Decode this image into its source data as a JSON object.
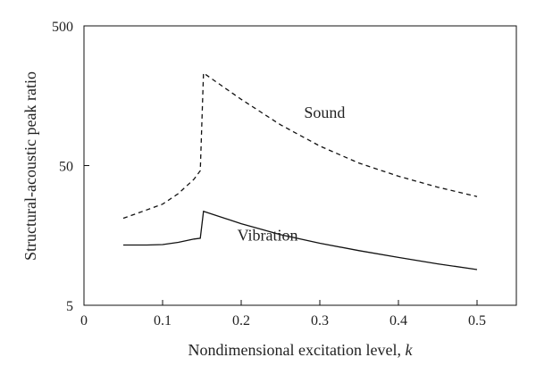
{
  "chart_data": {
    "type": "line",
    "xlabel": "Nondimensional excitation level, ",
    "xlabel_var": "k",
    "ylabel": "Structural-acoustic peak ratio",
    "xlim": [
      0,
      0.55
    ],
    "ylim": [
      5,
      500
    ],
    "yscale": "log",
    "x_ticks": [
      0,
      0.1,
      0.2,
      0.3,
      0.4,
      0.5
    ],
    "x_tick_labels": [
      "0",
      "0.1",
      "0.2",
      "0.3",
      "0.4",
      "0.5"
    ],
    "y_ticks": [
      5,
      50,
      500
    ],
    "y_tick_labels": [
      "5",
      "50",
      "500"
    ],
    "grid": false,
    "legend": "none",
    "series": [
      {
        "name": "Sound",
        "style": "dashed",
        "color": "#111111",
        "x": [
          0.05,
          0.07,
          0.1,
          0.12,
          0.14,
          0.148,
          0.152,
          0.2,
          0.25,
          0.3,
          0.35,
          0.4,
          0.45,
          0.5
        ],
        "y": [
          21,
          23,
          26.5,
          31.5,
          40,
          46,
          230,
          149,
          98,
          69,
          52,
          42,
          35,
          30
        ]
      },
      {
        "name": "Vibration",
        "style": "solid",
        "color": "#111111",
        "x": [
          0.05,
          0.08,
          0.1,
          0.12,
          0.14,
          0.148,
          0.152,
          0.2,
          0.25,
          0.3,
          0.35,
          0.4,
          0.45,
          0.5
        ],
        "y": [
          13.5,
          13.5,
          13.6,
          14.1,
          14.9,
          15.1,
          23.5,
          19.2,
          16,
          13.9,
          12.3,
          11,
          9.9,
          9
        ]
      }
    ],
    "annotations": [
      {
        "text": "Sound",
        "series": "Sound",
        "x": 0.28,
        "y": 110
      },
      {
        "text": "Vibration",
        "series": "Vibration",
        "x": 0.195,
        "y": 14.5
      }
    ]
  }
}
